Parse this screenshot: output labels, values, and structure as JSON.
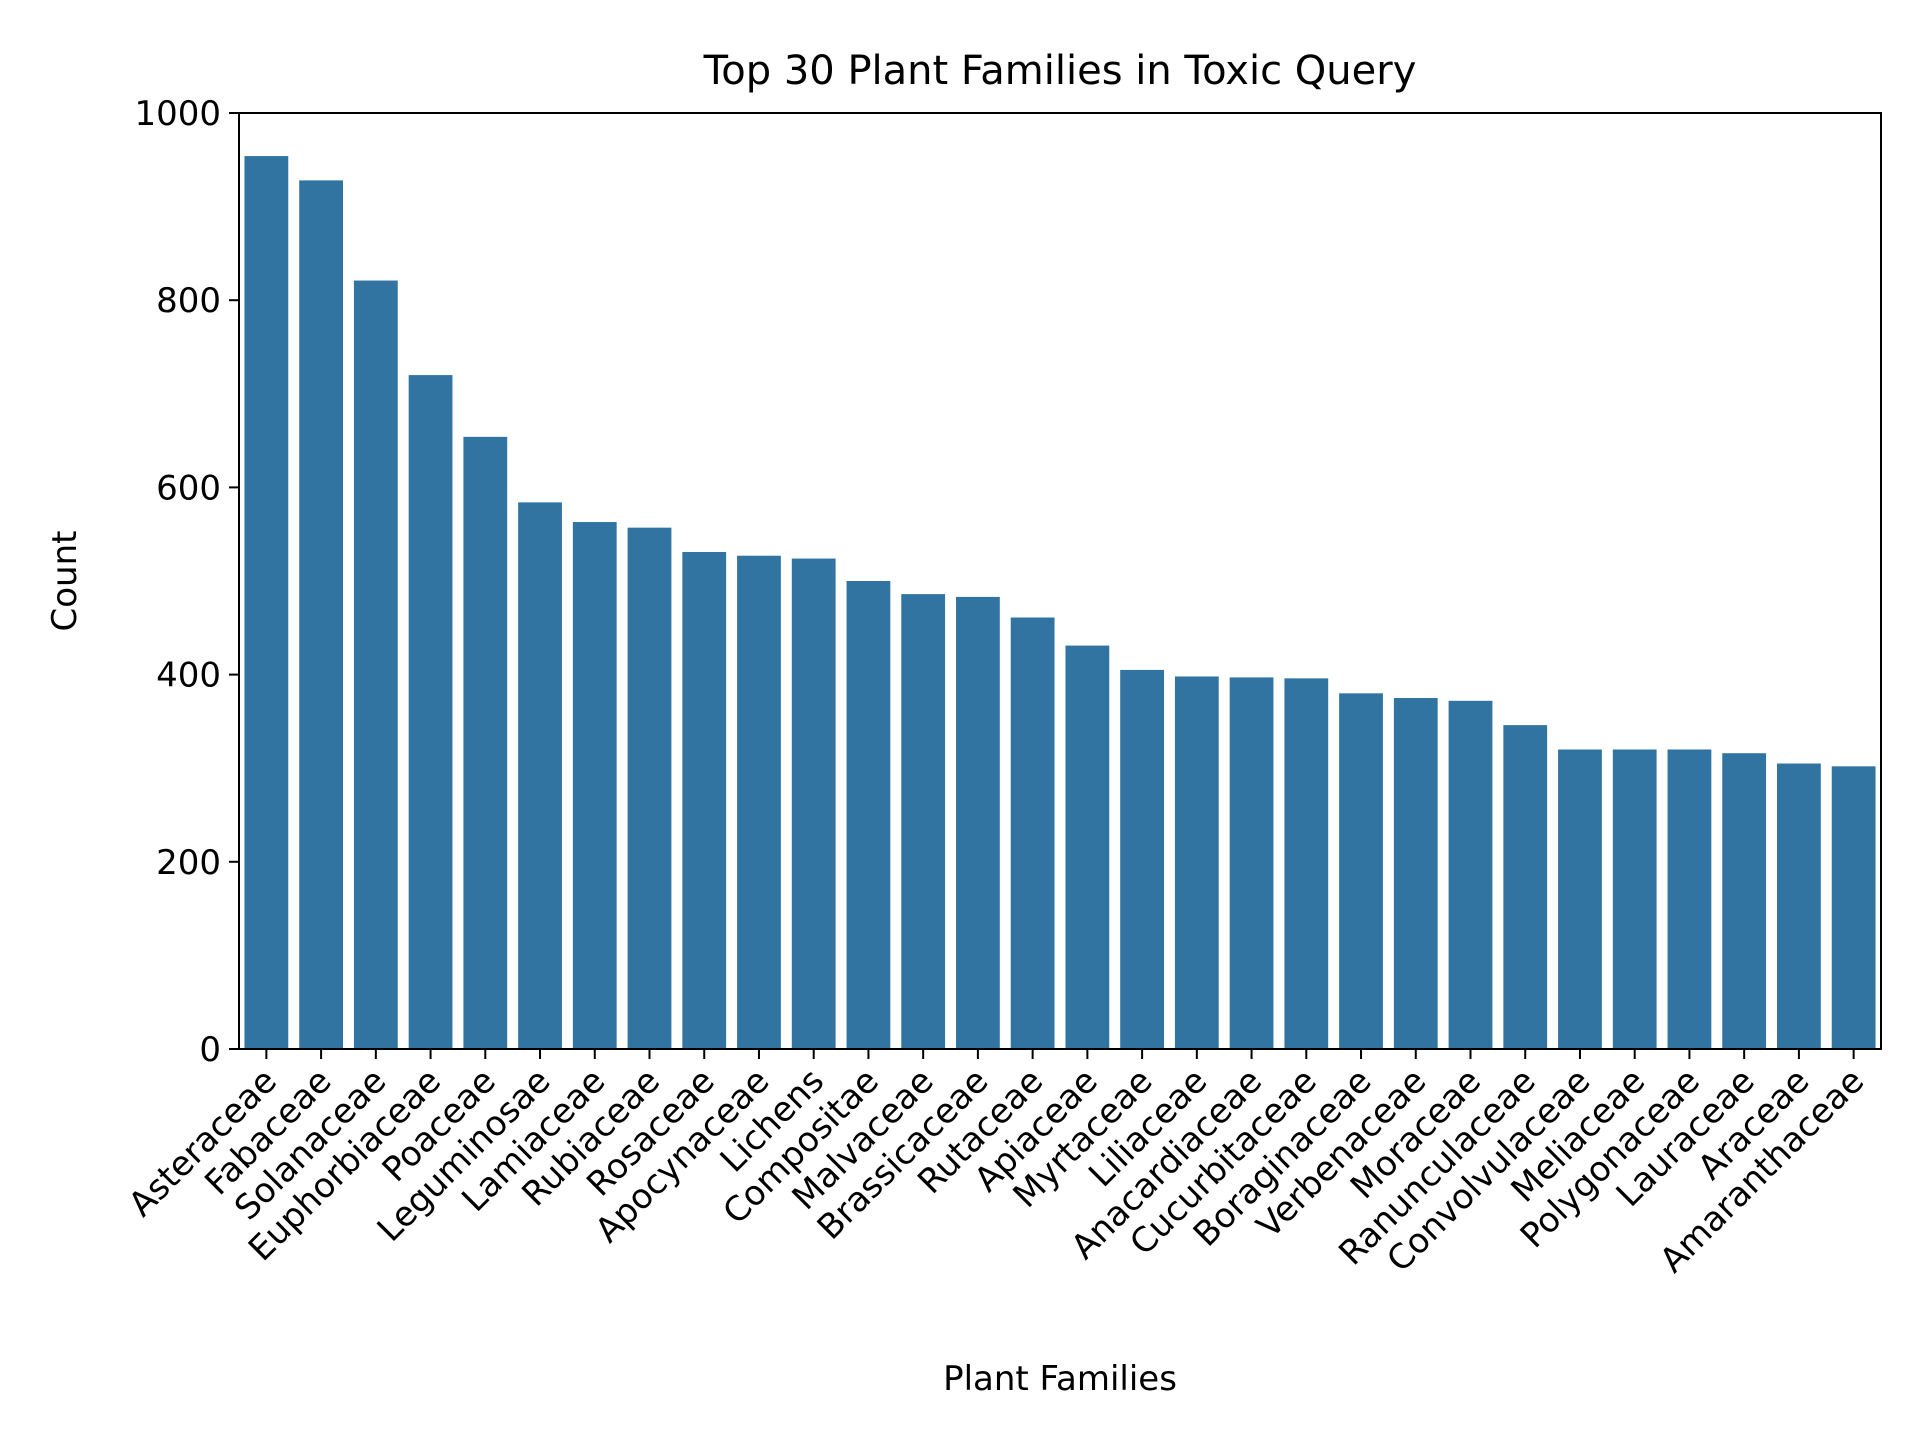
{
  "chart_data": {
    "type": "bar",
    "title": "Top 30 Plant Families in Toxic Query",
    "xlabel": "Plant Families",
    "ylabel": "Count",
    "ylim": [
      0,
      1000
    ],
    "yticks": [
      0,
      200,
      400,
      600,
      800,
      1000
    ],
    "grid": false,
    "bar_color": "#3274a1",
    "categories": [
      "Asteraceae",
      "Fabaceae",
      "Solanaceae",
      "Euphorbiaceae",
      "Poaceae",
      "Leguminosae",
      "Lamiaceae",
      "Rubiaceae",
      "Rosaceae",
      "Apocynaceae",
      "Lichens",
      "Compositae",
      "Malvaceae",
      "Brassicaceae",
      "Rutaceae",
      "Apiaceae",
      "Myrtaceae",
      "Liliaceae",
      "Anacardiaceae",
      "Cucurbitaceae",
      "Boraginaceae",
      "Verbenaceae",
      "Moraceae",
      "Ranunculaceae",
      "Convolvulaceae",
      "Meliaceae",
      "Polygonaceae",
      "Lauraceae",
      "Araceae",
      "Amaranthaceae"
    ],
    "values": [
      954,
      928,
      821,
      720,
      654,
      584,
      563,
      557,
      531,
      527,
      524,
      500,
      486,
      483,
      461,
      431,
      405,
      398,
      397,
      396,
      380,
      375,
      372,
      346,
      320,
      320,
      320,
      316,
      305,
      302
    ]
  }
}
